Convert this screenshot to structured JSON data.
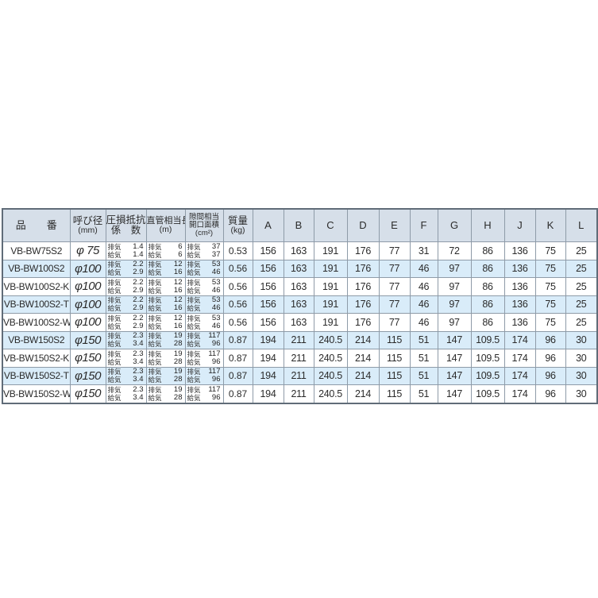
{
  "table": {
    "title_semantic": "ventilation-grille-spec-table",
    "colors": {
      "header_bg": "#d6dfe9",
      "alt_row_bg": "#d9ecf9",
      "row_bg": "#ffffff",
      "border": "#8e9ba8",
      "outer_border": "#606c78",
      "text": "#2b2b2b"
    },
    "header": {
      "product": "品　　番",
      "diameter_1": "呼び径",
      "diameter_2": "(mm)",
      "pressure_1": "圧損抵抗",
      "pressure_2": "係　数",
      "pipe_1": "直管相当長",
      "pipe_2": "(m)",
      "opening_1": "隙間相当",
      "opening_2": "開口面積",
      "opening_3": "(cm²)",
      "mass_1": "質量",
      "mass_2": "(kg)",
      "dims": [
        "A",
        "B",
        "C",
        "D",
        "E",
        "F",
        "G",
        "H",
        "J",
        "K",
        "L"
      ]
    },
    "sub_labels": {
      "exhaust": "排気",
      "supply": "給気"
    },
    "rows": [
      {
        "model": "VB-BW75S2",
        "diameter": "φ 75",
        "highlight": false,
        "pressure_loss": {
          "exhaust": "1.4",
          "supply": "1.4"
        },
        "pipe_length": {
          "exhaust": "6",
          "supply": "6"
        },
        "opening_area": {
          "exhaust": "37",
          "supply": "37"
        },
        "mass": "0.53",
        "dims": [
          "156",
          "163",
          "191",
          "176",
          "77",
          "31",
          "72",
          "86",
          "136",
          "75",
          "25"
        ]
      },
      {
        "model": "VB-BW100S2",
        "diameter": "φ100",
        "highlight": true,
        "pressure_loss": {
          "exhaust": "2.2",
          "supply": "2.9"
        },
        "pipe_length": {
          "exhaust": "12",
          "supply": "16"
        },
        "opening_area": {
          "exhaust": "53",
          "supply": "46"
        },
        "mass": "0.56",
        "dims": [
          "156",
          "163",
          "191",
          "176",
          "77",
          "46",
          "97",
          "86",
          "136",
          "75",
          "25"
        ]
      },
      {
        "model": "VB-BW100S2-K",
        "diameter": "φ100",
        "highlight": false,
        "pressure_loss": {
          "exhaust": "2.2",
          "supply": "2.9"
        },
        "pipe_length": {
          "exhaust": "12",
          "supply": "16"
        },
        "opening_area": {
          "exhaust": "53",
          "supply": "46"
        },
        "mass": "0.56",
        "dims": [
          "156",
          "163",
          "191",
          "176",
          "77",
          "46",
          "97",
          "86",
          "136",
          "75",
          "25"
        ]
      },
      {
        "model": "VB-BW100S2-T",
        "diameter": "φ100",
        "highlight": true,
        "pressure_loss": {
          "exhaust": "2.2",
          "supply": "2.9"
        },
        "pipe_length": {
          "exhaust": "12",
          "supply": "16"
        },
        "opening_area": {
          "exhaust": "53",
          "supply": "46"
        },
        "mass": "0.56",
        "dims": [
          "156",
          "163",
          "191",
          "176",
          "77",
          "46",
          "97",
          "86",
          "136",
          "75",
          "25"
        ]
      },
      {
        "model": "VB-BW100S2-W",
        "diameter": "φ100",
        "highlight": false,
        "pressure_loss": {
          "exhaust": "2.2",
          "supply": "2.9"
        },
        "pipe_length": {
          "exhaust": "12",
          "supply": "16"
        },
        "opening_area": {
          "exhaust": "53",
          "supply": "46"
        },
        "mass": "0.56",
        "dims": [
          "156",
          "163",
          "191",
          "176",
          "77",
          "46",
          "97",
          "86",
          "136",
          "75",
          "25"
        ]
      },
      {
        "model": "VB-BW150S2",
        "diameter": "φ150",
        "highlight": true,
        "pressure_loss": {
          "exhaust": "2.3",
          "supply": "3.4"
        },
        "pipe_length": {
          "exhaust": "19",
          "supply": "28"
        },
        "opening_area": {
          "exhaust": "117",
          "supply": "96"
        },
        "mass": "0.87",
        "dims": [
          "194",
          "211",
          "240.5",
          "214",
          "115",
          "51",
          "147",
          "109.5",
          "174",
          "96",
          "30"
        ]
      },
      {
        "model": "VB-BW150S2-K",
        "diameter": "φ150",
        "highlight": false,
        "pressure_loss": {
          "exhaust": "2.3",
          "supply": "3.4"
        },
        "pipe_length": {
          "exhaust": "19",
          "supply": "28"
        },
        "opening_area": {
          "exhaust": "117",
          "supply": "96"
        },
        "mass": "0.87",
        "dims": [
          "194",
          "211",
          "240.5",
          "214",
          "115",
          "51",
          "147",
          "109.5",
          "174",
          "96",
          "30"
        ]
      },
      {
        "model": "VB-BW150S2-T",
        "diameter": "φ150",
        "highlight": true,
        "pressure_loss": {
          "exhaust": "2.3",
          "supply": "3.4"
        },
        "pipe_length": {
          "exhaust": "19",
          "supply": "28"
        },
        "opening_area": {
          "exhaust": "117",
          "supply": "96"
        },
        "mass": "0.87",
        "dims": [
          "194",
          "211",
          "240.5",
          "214",
          "115",
          "51",
          "147",
          "109.5",
          "174",
          "96",
          "30"
        ]
      },
      {
        "model": "VB-BW150S2-W",
        "diameter": "φ150",
        "highlight": false,
        "pressure_loss": {
          "exhaust": "2.3",
          "supply": "3.4"
        },
        "pipe_length": {
          "exhaust": "19",
          "supply": "28"
        },
        "opening_area": {
          "exhaust": "117",
          "supply": "96"
        },
        "mass": "0.87",
        "dims": [
          "194",
          "211",
          "240.5",
          "214",
          "115",
          "51",
          "147",
          "109.5",
          "174",
          "96",
          "30"
        ]
      }
    ]
  }
}
